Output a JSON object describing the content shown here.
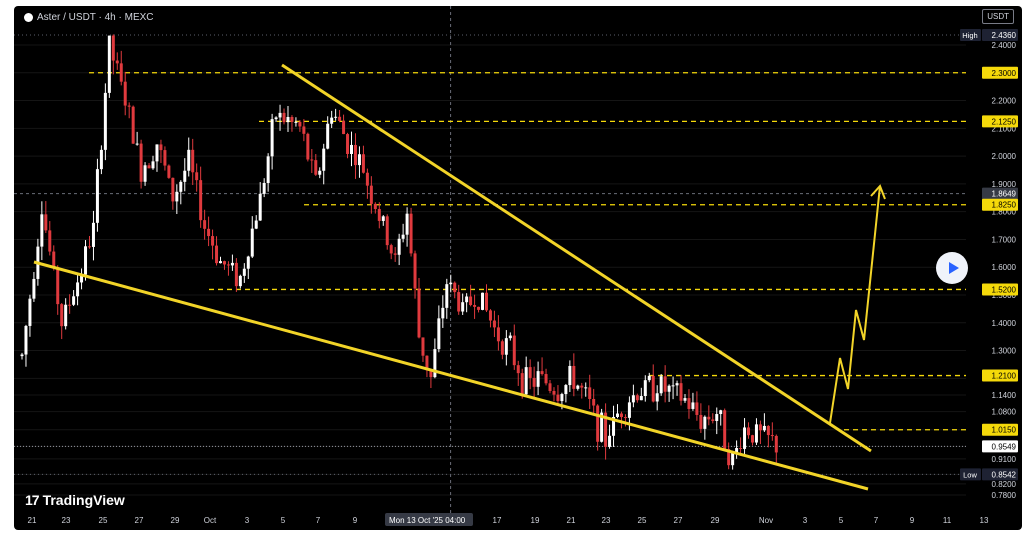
{
  "header": {
    "title": "Aster / USDT · 4h · MEXC",
    "currency": "USDT"
  },
  "brand": {
    "name": "TradingView",
    "mark": "17"
  },
  "colors": {
    "bg": "#000000",
    "up": "#ffffff",
    "down": "#e03a3e",
    "level": "#f5d90a",
    "trend": "#f2d428",
    "axis_text": "#d1d4dc"
  },
  "icons": {
    "play": "play-icon"
  },
  "chart_data": {
    "type": "candlestick",
    "symbol": "Aster / USDT",
    "interval": "4h",
    "exchange": "MEXC",
    "ylim": [
      0.75,
      2.49
    ],
    "y_ticks": [
      "2.4000",
      "2.3000",
      "2.2000",
      "2.1000",
      "2.0000",
      "1.9000",
      "1.8000",
      "1.7000",
      "1.6000",
      "1.5000",
      "1.4000",
      "1.3000",
      "1.2000",
      "1.1400",
      "1.0800",
      "1.0150",
      "0.9549",
      "0.9100",
      "0.8542",
      "0.8200",
      "0.7800"
    ],
    "x_ticks": [
      "21",
      "23",
      "25",
      "27",
      "29",
      "Oct",
      "3",
      "5",
      "7",
      "9",
      "Mon 13 Oct '25  04:00",
      "17",
      "19",
      "21",
      "23",
      "25",
      "27",
      "29",
      "Nov",
      "3",
      "5",
      "7",
      "9",
      "11",
      "13"
    ],
    "price_labels": [
      {
        "label": "High",
        "value": "2.4360",
        "kind": "high"
      },
      {
        "label": "",
        "value": "2.3000",
        "kind": "level"
      },
      {
        "label": "",
        "value": "2.1250",
        "kind": "level"
      },
      {
        "label": "",
        "value": "1.8649",
        "kind": "mark"
      },
      {
        "label": "",
        "value": "1.8250",
        "kind": "level"
      },
      {
        "label": "",
        "value": "1.5200",
        "kind": "level"
      },
      {
        "label": "",
        "value": "1.2100",
        "kind": "level"
      },
      {
        "label": "",
        "value": "1.0150",
        "kind": "level"
      },
      {
        "label": "",
        "value": "0.9549",
        "kind": "last"
      },
      {
        "label": "Low",
        "value": "0.8542",
        "kind": "low"
      }
    ],
    "levels": [
      2.3,
      2.125,
      1.825,
      1.52,
      1.21,
      1.015
    ],
    "high": 2.436,
    "low": 0.8542,
    "last": 0.9549,
    "crosshair": {
      "x_label": "Mon 13 Oct '25  04:00",
      "y_value": 1.8649
    },
    "trendlines": [
      {
        "name": "upper",
        "from": [
          "Oct 5",
          2.28
        ],
        "to": [
          "Nov 8",
          0.89
        ]
      },
      {
        "name": "lower",
        "from": [
          "Sep 21",
          1.39
        ],
        "to": [
          "Nov 8",
          0.79
        ]
      }
    ],
    "projection": [
      [
        "Nov 2",
        0.94
      ],
      [
        "Nov 3",
        1.1
      ],
      [
        "Nov 3.3",
        0.99
      ],
      [
        "Nov 4",
        1.24
      ],
      [
        "Nov 4.3",
        1.14
      ],
      [
        "Nov 5.5",
        1.66
      ]
    ],
    "path": [
      [
        0,
        1.28
      ],
      [
        5,
        1.82
      ],
      [
        10,
        1.4
      ],
      [
        14,
        1.55
      ],
      [
        18,
        1.74
      ],
      [
        22,
        2.4
      ],
      [
        26,
        2.2
      ],
      [
        30,
        1.95
      ],
      [
        34,
        2.05
      ],
      [
        38,
        1.85
      ],
      [
        42,
        1.98
      ],
      [
        46,
        1.75
      ],
      [
        50,
        1.62
      ],
      [
        55,
        1.56
      ],
      [
        60,
        1.85
      ],
      [
        64,
        2.15
      ],
      [
        70,
        2.1
      ],
      [
        74,
        1.9
      ],
      [
        78,
        2.17
      ],
      [
        82,
        2.05
      ],
      [
        86,
        1.95
      ],
      [
        90,
        1.78
      ],
      [
        94,
        1.62
      ],
      [
        97,
        1.8
      ],
      [
        100,
        1.35
      ],
      [
        103,
        1.2
      ],
      [
        107,
        1.55
      ],
      [
        111,
        1.45
      ],
      [
        115,
        1.5
      ],
      [
        119,
        1.38
      ],
      [
        123,
        1.3
      ],
      [
        127,
        1.18
      ],
      [
        131,
        1.2
      ],
      [
        135,
        1.15
      ],
      [
        139,
        1.2
      ],
      [
        143,
        1.1
      ],
      [
        147,
        0.98
      ],
      [
        151,
        1.1
      ],
      [
        155,
        1.15
      ],
      [
        160,
        1.18
      ],
      [
        163,
        1.15
      ],
      [
        167,
        1.12
      ],
      [
        171,
        1.05
      ],
      [
        175,
        1.08
      ],
      [
        179,
        0.9
      ],
      [
        182,
        1.02
      ],
      [
        185,
        1.0
      ],
      [
        190,
        0.96
      ]
    ]
  }
}
